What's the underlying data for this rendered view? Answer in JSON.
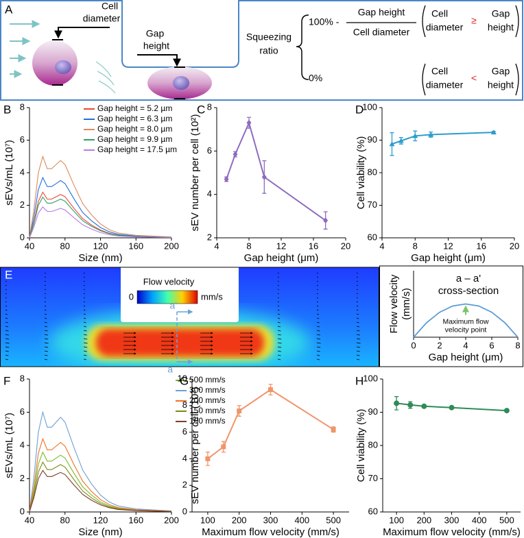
{
  "diagram_a": {
    "panel": "A",
    "cell_diameter_1": "Cell",
    "cell_diameter_2": "diameter",
    "gap_height_1": "Gap",
    "gap_height_2": "height",
    "squeezing_1": "Squeezing",
    "squeezing_2": "ratio",
    "hundred": "100% -",
    "frac_num": "Gap height",
    "frac_den": "Cell diameter",
    "case1_cell_1": "Cell",
    "case1_cell_2": "diameter",
    "case1_op": "≥",
    "case1_gap_1": "Gap",
    "case1_gap_2": "height",
    "zero": "0%",
    "case2_cell_1": "Cell",
    "case2_cell_2": "diameter",
    "case2_op": "<",
    "case2_gap_1": "Gap",
    "case2_gap_2": "height"
  },
  "diagram_e": {
    "panel": "E",
    "colorbar_title": "Flow velocity",
    "colorbar_min": "0",
    "colorbar_unit": "mm/s",
    "label_top": "a'",
    "label_bottom": "a"
  },
  "chart_data": [
    {
      "panel": "B",
      "type": "line",
      "x": [
        40,
        45,
        50,
        55,
        60,
        65,
        70,
        75,
        80,
        90,
        100,
        110,
        120,
        130,
        140,
        160,
        180,
        200
      ],
      "series": [
        {
          "name": "Gap height = 5.2 µm",
          "color": "#e8472f",
          "values": [
            0,
            0.98,
            2.24,
            2.8,
            2.38,
            2.38,
            2.52,
            2.66,
            2.52,
            1.82,
            1.18,
            0.78,
            0.48,
            0.28,
            0.17,
            0.08,
            0.06,
            0.03
          ]
        },
        {
          "name": "Gap height = 6.3 µm",
          "color": "#1f6fe0",
          "values": [
            0,
            1.3,
            2.96,
            3.7,
            3.15,
            3.15,
            3.33,
            3.52,
            3.33,
            2.41,
            1.55,
            1.04,
            0.63,
            0.37,
            0.22,
            0.11,
            0.07,
            0.04
          ]
        },
        {
          "name": "Gap height = 8.0 µm",
          "color": "#d98b5a",
          "values": [
            0,
            1.75,
            4.0,
            5.0,
            4.25,
            4.25,
            4.5,
            4.75,
            4.5,
            3.25,
            2.1,
            1.4,
            0.85,
            0.5,
            0.3,
            0.15,
            0.1,
            0.05
          ]
        },
        {
          "name": "Gap height = 9.9 µm",
          "color": "#2e9e6a",
          "values": [
            0,
            0.88,
            2.0,
            2.5,
            2.13,
            2.13,
            2.25,
            2.38,
            2.25,
            1.63,
            1.05,
            0.7,
            0.43,
            0.25,
            0.15,
            0.08,
            0.05,
            0.03
          ]
        },
        {
          "name": "Gap height = 17.5 µm",
          "color": "#b77be0",
          "values": [
            0,
            0.67,
            1.52,
            1.9,
            1.62,
            1.62,
            1.71,
            1.81,
            1.71,
            1.24,
            0.8,
            0.53,
            0.32,
            0.19,
            0.11,
            0.06,
            0.04,
            0.02
          ]
        }
      ],
      "xlim": [
        40,
        200
      ],
      "xticks": [
        40,
        80,
        120,
        160,
        200
      ],
      "ylim": [
        0,
        8
      ],
      "yticks": [
        0,
        2,
        4,
        6,
        8
      ],
      "xlabel": "Size (nm)",
      "ylabel": "sEVs/mL (10⁷)",
      "legend": "upper right"
    },
    {
      "panel": "C",
      "type": "line",
      "x": [
        5.2,
        6.3,
        8.0,
        9.9,
        17.5
      ],
      "values": [
        4.7,
        5.85,
        7.3,
        4.8,
        2.8
      ],
      "errors": [
        0.1,
        0.12,
        0.25,
        0.75,
        0.4
      ],
      "color": "#8e6bbf",
      "marker": "diamond",
      "xlim": [
        4,
        20
      ],
      "xticks": [
        4,
        8,
        12,
        16,
        20
      ],
      "ylim": [
        2,
        8
      ],
      "yticks": [
        2,
        4,
        6,
        8
      ],
      "xlabel": "Gap height (μm)",
      "ylabel": "sEV number per cell (10²)"
    },
    {
      "panel": "D",
      "type": "line",
      "x": [
        5.2,
        6.3,
        8.0,
        9.9,
        17.5
      ],
      "values": [
        88.8,
        89.8,
        91.3,
        91.7,
        92.4
      ],
      "errors": [
        3.5,
        1,
        1.5,
        0.8,
        0.3
      ],
      "color": "#2a9dcc",
      "marker": "triangle",
      "xlim": [
        4,
        20
      ],
      "xticks": [
        4,
        8,
        12,
        16,
        20
      ],
      "ylim": [
        60,
        100
      ],
      "yticks": [
        60,
        70,
        80,
        90,
        100
      ],
      "xlabel": "Gap height (μm)",
      "ylabel": "Cell viability (%)"
    },
    {
      "panel": "F",
      "type": "line",
      "x": [
        40,
        45,
        50,
        55,
        60,
        65,
        70,
        75,
        80,
        90,
        100,
        110,
        120,
        130,
        140,
        160,
        180,
        200
      ],
      "series": [
        {
          "name": "500 mm/s",
          "color": "#7ab929",
          "values": [
            0,
            1.26,
            2.88,
            3.6,
            3.06,
            3.06,
            3.24,
            3.42,
            3.24,
            2.34,
            1.51,
            1.01,
            0.61,
            0.36,
            0.22,
            0.11,
            0.07,
            0.04
          ]
        },
        {
          "name": "300 mm/s",
          "color": "#6a9fd6",
          "values": [
            0,
            2.1,
            4.8,
            6.0,
            5.1,
            5.1,
            5.4,
            5.7,
            5.4,
            3.9,
            2.52,
            1.68,
            1.02,
            0.6,
            0.36,
            0.18,
            0.12,
            0.06
          ]
        },
        {
          "name": "200 mm/s",
          "color": "#f07020",
          "values": [
            0,
            1.54,
            3.52,
            4.4,
            3.74,
            3.74,
            3.96,
            4.18,
            3.96,
            2.86,
            1.85,
            1.23,
            0.75,
            0.44,
            0.26,
            0.13,
            0.09,
            0.04
          ]
        },
        {
          "name": "150 mm/s",
          "color": "#7a8a10",
          "values": [
            0,
            1.05,
            2.4,
            3.0,
            2.55,
            2.55,
            2.7,
            2.85,
            2.7,
            1.95,
            1.26,
            0.84,
            0.51,
            0.3,
            0.18,
            0.09,
            0.06,
            0.03
          ]
        },
        {
          "name": "100 mm/s",
          "color": "#7a3b2a",
          "values": [
            0,
            0.88,
            2.0,
            2.5,
            2.13,
            2.13,
            2.25,
            2.38,
            2.25,
            1.63,
            1.05,
            0.7,
            0.43,
            0.25,
            0.15,
            0.08,
            0.05,
            0.03
          ]
        }
      ],
      "xlim": [
        40,
        200
      ],
      "xticks": [
        40,
        80,
        120,
        160,
        200
      ],
      "ylim": [
        0,
        8
      ],
      "yticks": [
        0,
        2,
        4,
        6,
        8
      ],
      "xlabel": "Size (nm)",
      "ylabel": "sEVs/mL (10⁷)",
      "legend": "right"
    },
    {
      "panel": "G",
      "type": "line",
      "x": [
        100,
        150,
        200,
        300,
        500
      ],
      "values": [
        4.0,
        4.9,
        7.6,
        9.2,
        6.2
      ],
      "errors": [
        0.5,
        0.4,
        0.4,
        0.4,
        0.2
      ],
      "color": "#f0956b",
      "marker": "square",
      "xlim": [
        50,
        550
      ],
      "xticks": [
        100,
        200,
        300,
        400,
        500
      ],
      "ylim": [
        0,
        10
      ],
      "yticks": [
        0,
        2,
        4,
        6,
        8,
        10
      ],
      "xlabel": "Maximum flow velocity (mm/s)",
      "ylabel": "sEV number per cell (10²)"
    },
    {
      "panel": "H",
      "type": "line",
      "x": [
        100,
        150,
        200,
        300,
        500
      ],
      "values": [
        92.7,
        92.2,
        91.8,
        91.4,
        90.5
      ],
      "errors": [
        2,
        1,
        0.3,
        0.4,
        0.2
      ],
      "color": "#2e8b57",
      "marker": "circle",
      "xlim": [
        50,
        550
      ],
      "xticks": [
        100,
        200,
        300,
        400,
        500
      ],
      "ylim": [
        60,
        100
      ],
      "yticks": [
        60,
        70,
        80,
        90,
        100
      ],
      "xlabel": "Maximum flow velocity (mm/s)",
      "ylabel": "Cell viability (%)"
    },
    {
      "type": "line",
      "title": [
        "a – a'",
        "cross-section"
      ],
      "x": [
        0,
        1,
        2,
        3,
        4,
        5,
        6,
        7,
        8
      ],
      "values": [
        0,
        0.4375,
        0.75,
        0.9375,
        1,
        0.9375,
        0.75,
        0.4375,
        0
      ],
      "color": "#5b9bd5",
      "xlim": [
        0,
        8
      ],
      "xticks": [
        0,
        2,
        4,
        6,
        8
      ],
      "ylim": [
        0,
        2
      ],
      "xlabel": "Gap height (μm)",
      "ylabel": [
        "Flow velocity",
        "(mm/s)"
      ],
      "annotation": [
        "Maximum flow",
        "velocity point"
      ]
    }
  ]
}
